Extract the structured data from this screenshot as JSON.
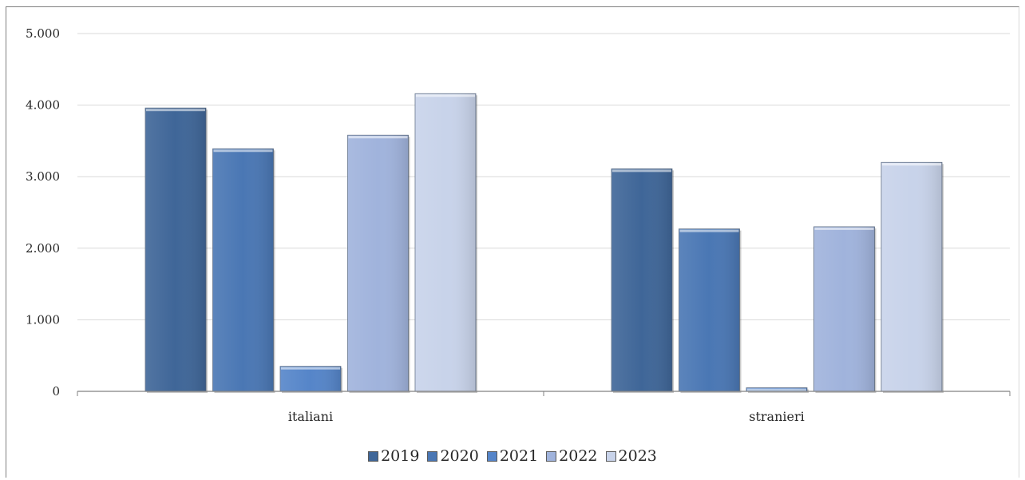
{
  "chart_data": {
    "type": "bar",
    "categories": [
      "italiani",
      "stranieri"
    ],
    "series": [
      {
        "name": "2019",
        "values": [
          3960,
          3110
        ],
        "color": "#3f6698"
      },
      {
        "name": "2020",
        "values": [
          3390,
          2270
        ],
        "color": "#4a77b4"
      },
      {
        "name": "2021",
        "values": [
          350,
          50
        ],
        "color": "#5585c9"
      },
      {
        "name": "2022",
        "values": [
          3580,
          2300
        ],
        "color": "#a0b3dc"
      },
      {
        "name": "2023",
        "values": [
          4160,
          3200
        ],
        "color": "#c8d3ea"
      }
    ],
    "yticks": [
      "0",
      "1.000",
      "2.000",
      "3.000",
      "4.000",
      "5.000"
    ],
    "ylim": [
      0,
      5000
    ],
    "title": "",
    "xlabel": "",
    "ylabel": "",
    "grid": true,
    "legend_position": "bottom"
  }
}
